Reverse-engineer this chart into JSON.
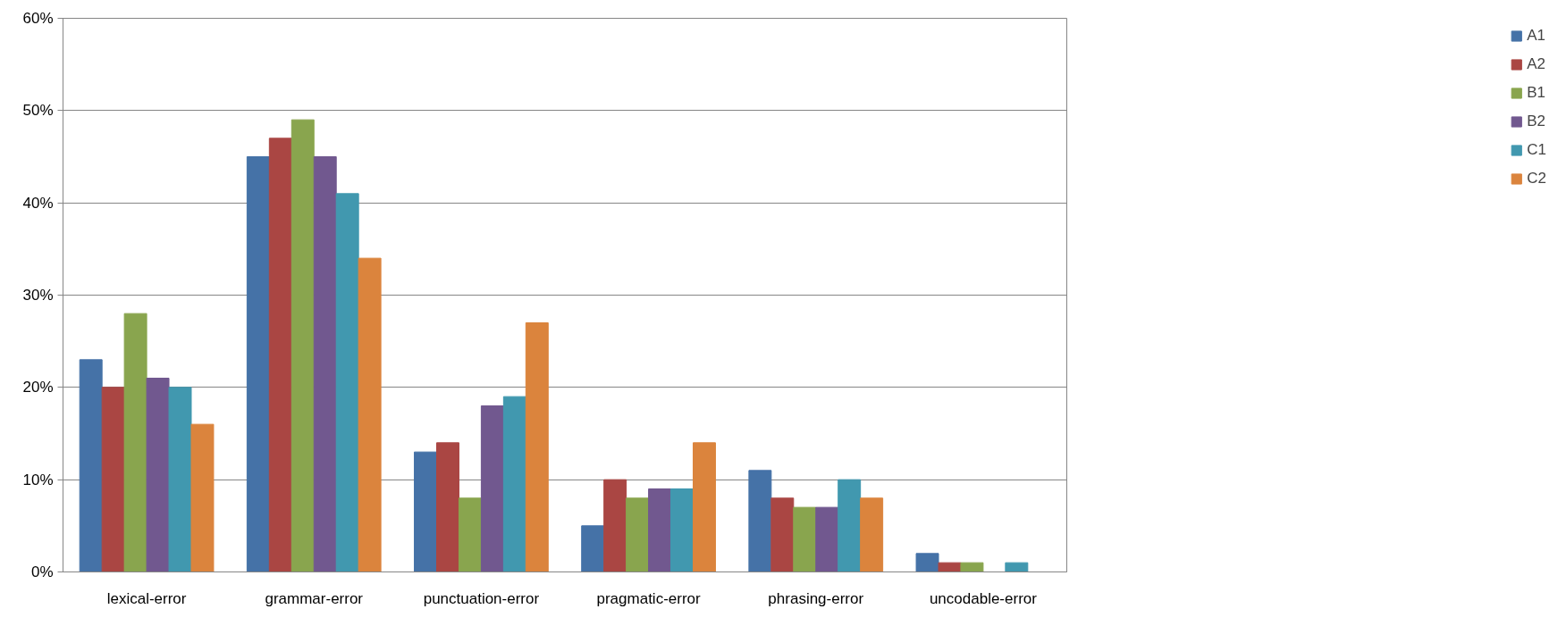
{
  "chart_data": {
    "type": "bar",
    "categories": [
      "lexical-error",
      "grammar-error",
      "punctuation-error",
      "pragmatic-error",
      "phrasing-error",
      "uncodable-error"
    ],
    "series": [
      {
        "name": "A1",
        "color": "#4572a7",
        "values": [
          23,
          45,
          13,
          5,
          11,
          2
        ]
      },
      {
        "name": "A2",
        "color": "#aa4643",
        "values": [
          20,
          47,
          14,
          10,
          8,
          1
        ]
      },
      {
        "name": "B1",
        "color": "#89a54e",
        "values": [
          28,
          49,
          8,
          8,
          7,
          1
        ]
      },
      {
        "name": "B2",
        "color": "#71588f",
        "values": [
          21,
          45,
          18,
          9,
          7,
          0
        ]
      },
      {
        "name": "C1",
        "color": "#4198af",
        "values": [
          20,
          41,
          19,
          9,
          10,
          1
        ]
      },
      {
        "name": "C2",
        "color": "#db843d",
        "values": [
          16,
          34,
          27,
          14,
          8,
          0
        ]
      }
    ],
    "ylim": [
      0,
      60
    ],
    "yticks": [
      {
        "value": 0,
        "label": "0%"
      },
      {
        "value": 10,
        "label": "10%"
      },
      {
        "value": 20,
        "label": "20%"
      },
      {
        "value": 30,
        "label": "30%"
      },
      {
        "value": 40,
        "label": "40%"
      },
      {
        "value": 50,
        "label": "50%"
      },
      {
        "value": 60,
        "label": "60%"
      }
    ],
    "grid": "y",
    "legend": "right"
  }
}
